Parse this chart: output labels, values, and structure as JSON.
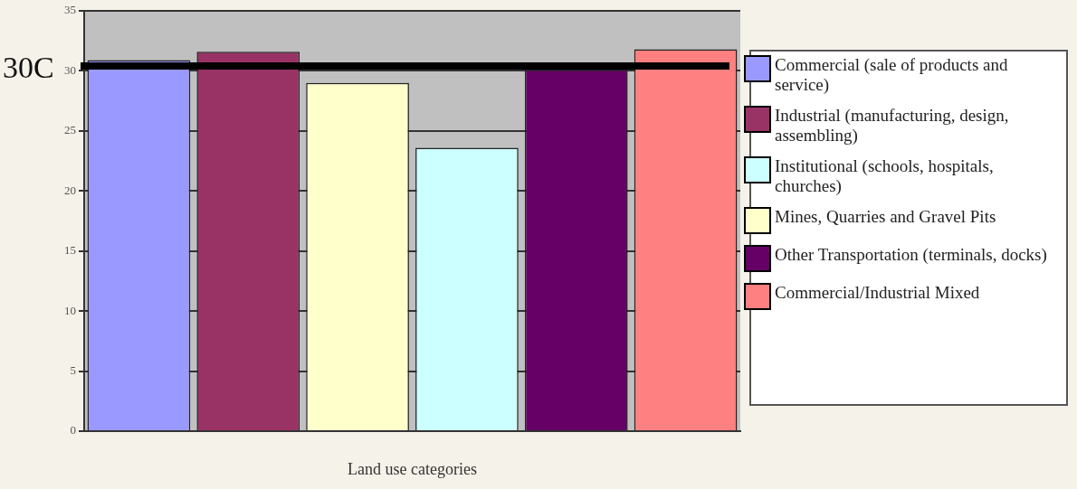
{
  "chart_data": {
    "type": "bar",
    "xlabel": "Land use categories",
    "categories": [
      null,
      null,
      null,
      null,
      null,
      null
    ],
    "series": [
      {
        "name": "Commercial (sale of products and service)",
        "color": "#9999ff",
        "values": [
          30.9,
          null,
          null,
          null,
          null,
          null
        ]
      },
      {
        "name": "Industrial (manufacturing, design, assembling)",
        "color": "#993366",
        "values": [
          null,
          31.6,
          null,
          null,
          null,
          null
        ]
      },
      {
        "name": "Institutional (schools, hospitals, churches)",
        "color": "#ccffff",
        "values": [
          null,
          null,
          null,
          23.6,
          null,
          null
        ]
      },
      {
        "name": "Mines, Quarries and Gravel Pits",
        "color": "#ffffcc",
        "values": [
          null,
          null,
          29.0,
          null,
          null,
          null
        ]
      },
      {
        "name": "Other Transportation (terminals, docks)",
        "color": "#660066",
        "values": [
          null,
          null,
          null,
          null,
          30.1,
          null
        ]
      },
      {
        "name": "Commercial/Industrial Mixed",
        "color": "#ff8080",
        "values": [
          null,
          null,
          null,
          null,
          null,
          31.8
        ]
      }
    ],
    "ylim": [
      0,
      35
    ],
    "yticks": [
      0,
      5,
      10,
      15,
      20,
      25,
      30,
      35
    ],
    "grid": "y",
    "legend": "right",
    "ref_lines": [
      {
        "axis": "y",
        "value": 30.4,
        "label": "30C",
        "color": "#000000"
      }
    ]
  }
}
